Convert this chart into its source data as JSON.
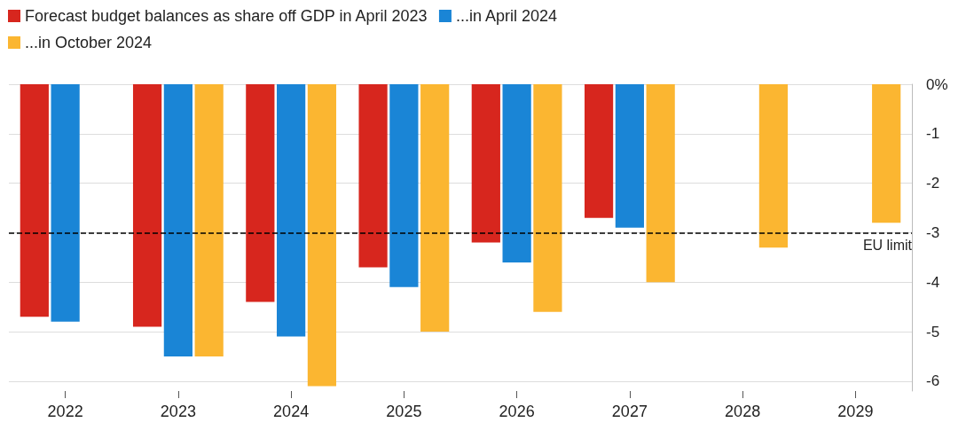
{
  "chart_data": {
    "type": "bar",
    "categories": [
      "2022",
      "2023",
      "2024",
      "2025",
      "2026",
      "2027",
      "2028",
      "2029"
    ],
    "series": [
      {
        "name": "Forecast budget balances as share off GDP in April 2023",
        "color": "#d7261e",
        "values": [
          -4.7,
          -4.9,
          -4.4,
          -3.7,
          -3.2,
          -2.7,
          null,
          null
        ]
      },
      {
        "name": "...in April 2024",
        "color": "#1a85d6",
        "values": [
          -4.8,
          -5.5,
          -5.1,
          -4.1,
          -3.6,
          -2.9,
          null,
          null
        ]
      },
      {
        "name": "...in October 2024",
        "color": "#fbb631",
        "values": [
          null,
          -5.5,
          -6.1,
          -5.0,
          -4.6,
          -4.0,
          -3.3,
          -2.8
        ]
      }
    ],
    "ylim": [
      -6.2,
      0
    ],
    "yticks": [
      {
        "value": 0,
        "label": "0%"
      },
      -1,
      -2,
      -3,
      -4,
      -5,
      -6
    ],
    "grid": "y",
    "legend": "top left",
    "ref_lines": [
      {
        "axis": "y",
        "value": -3,
        "label": "EU limit",
        "color": "#000000",
        "line_style": "dashed"
      }
    ]
  }
}
